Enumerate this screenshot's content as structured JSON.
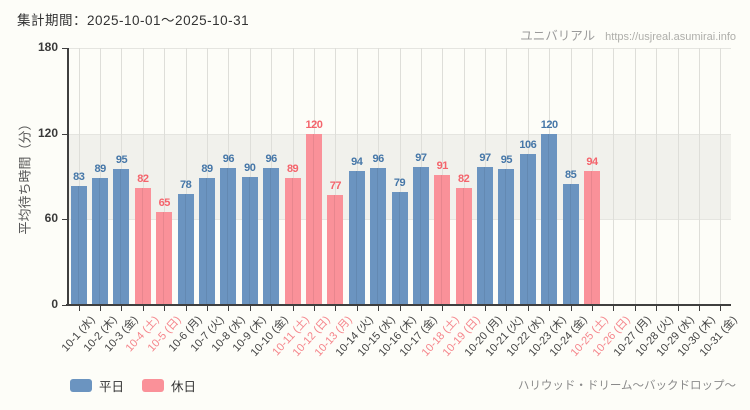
{
  "header": {
    "period_label": "集計期間：2025-10-01～2025-10-31"
  },
  "branding": {
    "site_name": "ユニバリアル",
    "site_url": "https://usjreal.asumirai.info"
  },
  "footer": {
    "attraction_name": "ハリウッド・ドリーム～バックドロップ～"
  },
  "legend": [
    {
      "label": "平日",
      "kind": "weekday"
    },
    {
      "label": "休日",
      "kind": "holiday"
    }
  ],
  "colors": {
    "weekday_bar": "#6b94c0",
    "holiday_bar": "#fa9199",
    "weekday_value_label": "#4677a8",
    "holiday_value_label": "#f4646c",
    "weekday_tick_label": "#444444",
    "holiday_tick_label": "#f5858b",
    "band": "#f1f1ec",
    "axis": "#3f3f3f"
  },
  "chart_data": {
    "type": "bar",
    "title": "",
    "xlabel": "",
    "ylabel": "平均待ち時間（分）",
    "ylim": [
      0,
      180
    ],
    "yticks": [
      0,
      60,
      120,
      180
    ],
    "grid": true,
    "shaded_band": [
      60,
      120
    ],
    "legend_position": "bottom-left",
    "categories": [
      "10-1 (水)",
      "10-2 (木)",
      "10-3 (金)",
      "10-4 (土)",
      "10-5 (日)",
      "10-6 (月)",
      "10-7 (火)",
      "10-8 (水)",
      "10-9 (木)",
      "10-10 (金)",
      "10-11 (土)",
      "10-12 (日)",
      "10-13 (月)",
      "10-14 (火)",
      "10-15 (水)",
      "10-16 (木)",
      "10-17 (金)",
      "10-18 (土)",
      "10-19 (日)",
      "10-20 (月)",
      "10-21 (火)",
      "10-22 (水)",
      "10-23 (木)",
      "10-24 (金)",
      "10-25 (土)",
      "10-26 (日)",
      "10-27 (月)",
      "10-28 (火)",
      "10-29 (水)",
      "10-30 (木)",
      "10-31 (金)"
    ],
    "points": [
      {
        "date": "10-1 (水)",
        "value": 83,
        "kind": "weekday"
      },
      {
        "date": "10-2 (木)",
        "value": 89,
        "kind": "weekday"
      },
      {
        "date": "10-3 (金)",
        "value": 95,
        "kind": "weekday"
      },
      {
        "date": "10-4 (土)",
        "value": 82,
        "kind": "holiday"
      },
      {
        "date": "10-5 (日)",
        "value": 65,
        "kind": "holiday"
      },
      {
        "date": "10-6 (月)",
        "value": 78,
        "kind": "weekday"
      },
      {
        "date": "10-7 (火)",
        "value": 89,
        "kind": "weekday"
      },
      {
        "date": "10-8 (水)",
        "value": 96,
        "kind": "weekday"
      },
      {
        "date": "10-9 (木)",
        "value": 90,
        "kind": "weekday"
      },
      {
        "date": "10-10 (金)",
        "value": 96,
        "kind": "weekday"
      },
      {
        "date": "10-11 (土)",
        "value": 89,
        "kind": "holiday"
      },
      {
        "date": "10-12 (日)",
        "value": 120,
        "kind": "holiday"
      },
      {
        "date": "10-13 (月)",
        "value": 77,
        "kind": "holiday"
      },
      {
        "date": "10-14 (火)",
        "value": 94,
        "kind": "weekday"
      },
      {
        "date": "10-15 (水)",
        "value": 96,
        "kind": "weekday"
      },
      {
        "date": "10-16 (木)",
        "value": 79,
        "kind": "weekday"
      },
      {
        "date": "10-17 (金)",
        "value": 97,
        "kind": "weekday"
      },
      {
        "date": "10-18 (土)",
        "value": 91,
        "kind": "holiday"
      },
      {
        "date": "10-19 (日)",
        "value": 82,
        "kind": "holiday"
      },
      {
        "date": "10-20 (月)",
        "value": 97,
        "kind": "weekday"
      },
      {
        "date": "10-21 (火)",
        "value": 95,
        "kind": "weekday"
      },
      {
        "date": "10-22 (水)",
        "value": 106,
        "kind": "weekday"
      },
      {
        "date": "10-23 (木)",
        "value": 120,
        "kind": "weekday"
      },
      {
        "date": "10-24 (金)",
        "value": 85,
        "kind": "weekday"
      },
      {
        "date": "10-25 (土)",
        "value": 94,
        "kind": "holiday"
      },
      {
        "date": "10-26 (日)",
        "value": null,
        "kind": "holiday"
      },
      {
        "date": "10-27 (月)",
        "value": null,
        "kind": "weekday"
      },
      {
        "date": "10-28 (火)",
        "value": null,
        "kind": "weekday"
      },
      {
        "date": "10-29 (水)",
        "value": null,
        "kind": "weekday"
      },
      {
        "date": "10-30 (木)",
        "value": null,
        "kind": "weekday"
      },
      {
        "date": "10-31 (金)",
        "value": null,
        "kind": "weekday"
      }
    ]
  }
}
